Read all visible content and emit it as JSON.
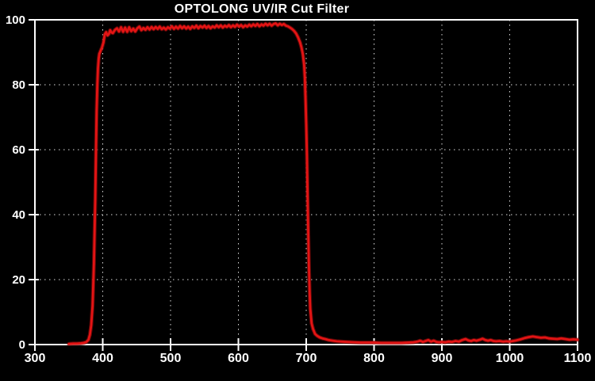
{
  "title": "OPTOLONG UV/IR Cut Filter",
  "colors": {
    "background": "#000000",
    "curve": "#e31414",
    "curve_halo": "#8a0b0b",
    "axis": "#ffffff",
    "grid": "#dcdcdc",
    "text": "#ffffff"
  },
  "chart_data": {
    "type": "line",
    "title": "OPTOLONG UV/IR Cut Filter",
    "xlabel": "",
    "ylabel": "",
    "xlim": [
      300,
      1100
    ],
    "ylim": [
      0,
      100
    ],
    "x_ticks": [
      300,
      400,
      500,
      600,
      700,
      800,
      900,
      1000,
      1100
    ],
    "y_ticks": [
      0,
      20,
      40,
      60,
      80,
      100
    ],
    "grid": "dotted",
    "legend": "none",
    "series": [
      {
        "name": "transmission-percent",
        "color": "#e31414",
        "points": [
          [
            350,
            0.2
          ],
          [
            356,
            0.3
          ],
          [
            362,
            0.3
          ],
          [
            368,
            0.4
          ],
          [
            372,
            0.5
          ],
          [
            376,
            0.8
          ],
          [
            379,
            1.5
          ],
          [
            381,
            3
          ],
          [
            383,
            6
          ],
          [
            385,
            12
          ],
          [
            387,
            25
          ],
          [
            389,
            45
          ],
          [
            390,
            60
          ],
          [
            391,
            72
          ],
          [
            392,
            80
          ],
          [
            393,
            85
          ],
          [
            394,
            88
          ],
          [
            395,
            89.5
          ],
          [
            397,
            90.5
          ],
          [
            399,
            91.5
          ],
          [
            401,
            93
          ],
          [
            403,
            95.5
          ],
          [
            405,
            96.2
          ],
          [
            407,
            95.2
          ],
          [
            409,
            95.6
          ],
          [
            411,
            96.8
          ],
          [
            413,
            96.1
          ],
          [
            415,
            95.9
          ],
          [
            418,
            96.9
          ],
          [
            421,
            97.4
          ],
          [
            424,
            96.4
          ],
          [
            427,
            97.7
          ],
          [
            430,
            96.3
          ],
          [
            433,
            97.6
          ],
          [
            436,
            96.3
          ],
          [
            439,
            97.7
          ],
          [
            442,
            96.5
          ],
          [
            445,
            97.3
          ],
          [
            448,
            96.4
          ],
          [
            451,
            97.4
          ],
          [
            454,
            97.9
          ],
          [
            457,
            96.8
          ],
          [
            460,
            97.5
          ],
          [
            463,
            96.9
          ],
          [
            466,
            97.7
          ],
          [
            469,
            97.0
          ],
          [
            472,
            97.8
          ],
          [
            475,
            97.1
          ],
          [
            478,
            97.8
          ],
          [
            481,
            97.2
          ],
          [
            484,
            97.9
          ],
          [
            487,
            97.1
          ],
          [
            490,
            97.6
          ],
          [
            493,
            97.0
          ],
          [
            496,
            97.7
          ],
          [
            499,
            97.3
          ],
          [
            502,
            98.0
          ],
          [
            505,
            97.2
          ],
          [
            508,
            97.9
          ],
          [
            511,
            97.3
          ],
          [
            514,
            98.1
          ],
          [
            517,
            97.4
          ],
          [
            520,
            98.0
          ],
          [
            523,
            97.3
          ],
          [
            526,
            97.9
          ],
          [
            529,
            97.2
          ],
          [
            532,
            98.0
          ],
          [
            535,
            97.5
          ],
          [
            538,
            98.2
          ],
          [
            541,
            97.4
          ],
          [
            544,
            98.1
          ],
          [
            547,
            97.6
          ],
          [
            550,
            98.2
          ],
          [
            553,
            97.5
          ],
          [
            556,
            98.1
          ],
          [
            559,
            97.4
          ],
          [
            562,
            98.0
          ],
          [
            565,
            97.6
          ],
          [
            568,
            98.3
          ],
          [
            571,
            97.7
          ],
          [
            574,
            98.3
          ],
          [
            577,
            97.6
          ],
          [
            580,
            98.2
          ],
          [
            583,
            97.8
          ],
          [
            586,
            98.4
          ],
          [
            589,
            97.7
          ],
          [
            592,
            98.3
          ],
          [
            595,
            97.8
          ],
          [
            598,
            98.5
          ],
          [
            601,
            97.9
          ],
          [
            604,
            98.4
          ],
          [
            607,
            97.7
          ],
          [
            610,
            98.3
          ],
          [
            613,
            97.9
          ],
          [
            616,
            98.5
          ],
          [
            619,
            98.0
          ],
          [
            622,
            98.6
          ],
          [
            625,
            98.1
          ],
          [
            628,
            98.7
          ],
          [
            631,
            98.0
          ],
          [
            634,
            98.6
          ],
          [
            637,
            98.2
          ],
          [
            640,
            98.8
          ],
          [
            643,
            98.3
          ],
          [
            646,
            98.8
          ],
          [
            649,
            98.2
          ],
          [
            652,
            98.7
          ],
          [
            655,
            98.9
          ],
          [
            658,
            98.3
          ],
          [
            661,
            98.8
          ],
          [
            664,
            98.4
          ],
          [
            667,
            98.7
          ],
          [
            670,
            98.2
          ],
          [
            673,
            98.0
          ],
          [
            676,
            97.6
          ],
          [
            679,
            97.2
          ],
          [
            682,
            96.6
          ],
          [
            685,
            95.8
          ],
          [
            688,
            94.6
          ],
          [
            691,
            93.0
          ],
          [
            693,
            91.5
          ],
          [
            695,
            89.5
          ],
          [
            697,
            86
          ],
          [
            698,
            82
          ],
          [
            699,
            76
          ],
          [
            700,
            68
          ],
          [
            701,
            58
          ],
          [
            702,
            46
          ],
          [
            703,
            34
          ],
          [
            704,
            24
          ],
          [
            705,
            16
          ],
          [
            706,
            11
          ],
          [
            708,
            6.5
          ],
          [
            710,
            4.8
          ],
          [
            713,
            3.3
          ],
          [
            716,
            2.7
          ],
          [
            720,
            2.2
          ],
          [
            724,
            1.9
          ],
          [
            728,
            1.7
          ],
          [
            733,
            1.4
          ],
          [
            739,
            1.2
          ],
          [
            745,
            1.0
          ],
          [
            752,
            0.9
          ],
          [
            760,
            0.8
          ],
          [
            770,
            0.7
          ],
          [
            780,
            0.6
          ],
          [
            790,
            0.6
          ],
          [
            800,
            0.6
          ],
          [
            810,
            0.5
          ],
          [
            820,
            0.5
          ],
          [
            830,
            0.5
          ],
          [
            840,
            0.5
          ],
          [
            850,
            0.6
          ],
          [
            858,
            0.7
          ],
          [
            864,
            0.9
          ],
          [
            868,
            1.2
          ],
          [
            872,
            0.8
          ],
          [
            876,
            1.1
          ],
          [
            880,
            1.4
          ],
          [
            884,
            0.9
          ],
          [
            888,
            1.2
          ],
          [
            892,
            0.8
          ],
          [
            896,
            0.7
          ],
          [
            900,
            0.8
          ],
          [
            905,
            0.7
          ],
          [
            910,
            0.9
          ],
          [
            915,
            0.8
          ],
          [
            920,
            1.1
          ],
          [
            925,
            0.9
          ],
          [
            930,
            1.4
          ],
          [
            935,
            1.7
          ],
          [
            939,
            1.3
          ],
          [
            943,
            1.1
          ],
          [
            947,
            1.4
          ],
          [
            951,
            1.2
          ],
          [
            956,
            1.5
          ],
          [
            960,
            1.8
          ],
          [
            964,
            1.4
          ],
          [
            968,
            1.2
          ],
          [
            972,
            1.4
          ],
          [
            976,
            1.1
          ],
          [
            980,
            1.0
          ],
          [
            985,
            1.1
          ],
          [
            990,
            0.9
          ],
          [
            995,
            1.0
          ],
          [
            1000,
            0.9
          ],
          [
            1005,
            1.1
          ],
          [
            1010,
            1.3
          ],
          [
            1016,
            1.6
          ],
          [
            1022,
            2.0
          ],
          [
            1028,
            2.3
          ],
          [
            1034,
            2.5
          ],
          [
            1040,
            2.3
          ],
          [
            1046,
            2.1
          ],
          [
            1052,
            2.2
          ],
          [
            1058,
            1.9
          ],
          [
            1064,
            1.8
          ],
          [
            1070,
            1.7
          ],
          [
            1076,
            1.9
          ],
          [
            1082,
            1.7
          ],
          [
            1088,
            1.5
          ],
          [
            1094,
            1.6
          ],
          [
            1100,
            1.5
          ]
        ]
      }
    ]
  }
}
